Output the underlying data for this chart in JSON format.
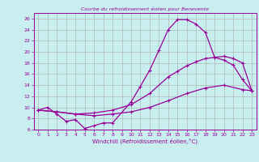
{
  "title": "Courbe du refroidissement éolien pour Benevente",
  "xlabel": "Windchill (Refroidissement éolien,°C)",
  "bg_color": "#c8eef0",
  "line_color": "#990099",
  "grid_color": "#aaaaaa",
  "xlim": [
    -0.5,
    23.5
  ],
  "ylim": [
    6,
    27
  ],
  "xticks": [
    0,
    1,
    2,
    3,
    4,
    5,
    6,
    7,
    8,
    9,
    10,
    11,
    12,
    13,
    14,
    15,
    16,
    17,
    18,
    19,
    20,
    21,
    22,
    23
  ],
  "yticks": [
    6,
    8,
    10,
    12,
    14,
    16,
    18,
    20,
    22,
    24,
    26
  ],
  "line1_x": [
    0,
    1,
    2,
    3,
    4,
    5,
    6,
    7,
    8,
    10,
    11,
    12,
    13,
    14,
    15,
    16,
    17,
    18,
    19,
    20,
    21,
    22,
    23
  ],
  "line1_y": [
    9.5,
    10.0,
    8.8,
    7.5,
    7.8,
    6.2,
    6.7,
    7.2,
    7.2,
    11.0,
    13.8,
    16.7,
    20.3,
    24.0,
    25.8,
    25.8,
    25.0,
    23.5,
    19.0,
    18.5,
    17.6,
    15.0,
    13.0
  ],
  "line2_x": [
    0,
    2,
    4,
    6,
    8,
    10,
    12,
    14,
    15,
    16,
    17,
    18,
    19,
    20,
    21,
    22,
    23
  ],
  "line2_y": [
    9.5,
    9.2,
    8.8,
    9.0,
    9.5,
    10.5,
    12.5,
    15.5,
    16.5,
    17.5,
    18.2,
    18.8,
    19.0,
    19.2,
    18.8,
    18.0,
    13.0
  ],
  "line3_x": [
    0,
    2,
    4,
    6,
    8,
    10,
    12,
    14,
    16,
    18,
    20,
    22,
    23
  ],
  "line3_y": [
    9.5,
    9.2,
    8.8,
    8.5,
    8.8,
    9.2,
    10.0,
    11.2,
    12.5,
    13.5,
    14.0,
    13.2,
    13.0
  ]
}
